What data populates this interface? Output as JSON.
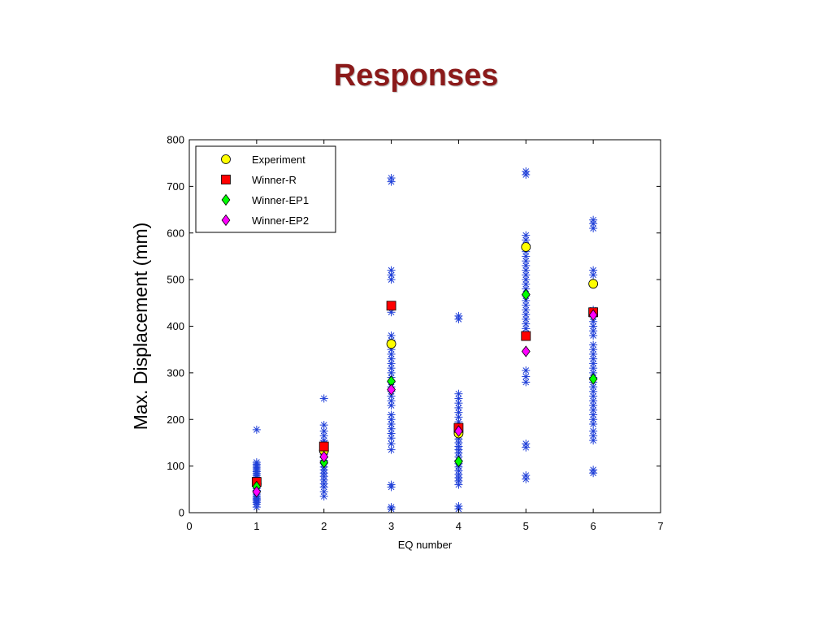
{
  "slide": {
    "title": "Responses"
  },
  "chart_data": {
    "type": "scatter",
    "xlabel": "EQ number",
    "ylabel": "Max. Displacement (mm)",
    "xlim": [
      0,
      7
    ],
    "ylim": [
      0,
      800
    ],
    "xticks": [
      "0",
      "1",
      "2",
      "3",
      "4",
      "5",
      "6",
      "7"
    ],
    "yticks": [
      "0",
      "100",
      "200",
      "300",
      "400",
      "500",
      "600",
      "700",
      "800"
    ],
    "grid": false,
    "legend_position": "top-left",
    "ensemble": {
      "color": "#1f3fd8",
      "marker": "star-icon",
      "x": [
        1,
        2,
        3,
        4,
        5,
        6
      ],
      "y": [
        [
          12,
          18,
          22,
          25,
          28,
          30,
          33,
          36,
          40,
          44,
          48,
          52,
          56,
          60,
          64,
          68,
          72,
          76,
          80,
          84,
          88,
          92,
          96,
          100,
          104,
          108,
          178
        ],
        [
          35,
          45,
          55,
          62,
          70,
          78,
          85,
          92,
          98,
          105,
          112,
          118,
          125,
          132,
          140,
          148,
          155,
          165,
          175,
          188,
          245
        ],
        [
          8,
          12,
          55,
          60,
          135,
          148,
          160,
          170,
          180,
          190,
          200,
          210,
          230,
          240,
          250,
          260,
          270,
          280,
          290,
          300,
          310,
          320,
          330,
          340,
          350,
          370,
          380,
          430,
          500,
          510,
          520,
          710,
          718
        ],
        [
          8,
          14,
          60,
          68,
          75,
          82,
          90,
          98,
          105,
          112,
          120,
          128,
          135,
          142,
          150,
          158,
          165,
          175,
          185,
          195,
          205,
          215,
          225,
          235,
          245,
          255,
          415,
          422
        ],
        [
          72,
          80,
          140,
          148,
          280,
          292,
          305,
          385,
          395,
          405,
          415,
          425,
          435,
          445,
          455,
          465,
          480,
          490,
          500,
          510,
          520,
          530,
          540,
          550,
          560,
          575,
          585,
          595,
          725,
          732
        ],
        [
          85,
          92,
          155,
          165,
          175,
          190,
          200,
          210,
          220,
          230,
          240,
          250,
          260,
          270,
          280,
          290,
          300,
          310,
          320,
          330,
          340,
          350,
          360,
          380,
          390,
          400,
          410,
          420,
          435,
          510,
          520,
          610,
          620,
          628
        ]
      ]
    },
    "series": [
      {
        "name": "Experiment",
        "marker": "circle",
        "color": "#ffff00",
        "x": [
          1,
          2,
          3,
          4,
          5,
          6
        ],
        "y": [
          62,
          133,
          362,
          170,
          570,
          491
        ]
      },
      {
        "name": "Winner-R",
        "marker": "square",
        "color": "#ff0000",
        "x": [
          1,
          2,
          3,
          4,
          5,
          6
        ],
        "y": [
          66,
          142,
          444,
          182,
          379,
          430
        ]
      },
      {
        "name": "Winner-EP1",
        "marker": "diamond",
        "color": "#00ff00",
        "x": [
          1,
          2,
          3,
          4,
          5,
          6
        ],
        "y": [
          56,
          108,
          282,
          110,
          468,
          287
        ]
      },
      {
        "name": "Winner-EP2",
        "marker": "diamond",
        "color": "#ff00ff",
        "x": [
          1,
          2,
          3,
          4,
          5,
          6
        ],
        "y": [
          45,
          120,
          264,
          175,
          346,
          424
        ]
      }
    ]
  }
}
